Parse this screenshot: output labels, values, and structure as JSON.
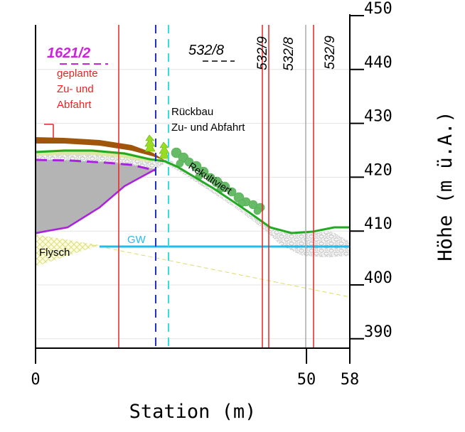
{
  "axes": {
    "x_label": "Station (m)",
    "y_label": "Höhe (m ü.A.)",
    "x_ticks": [
      {
        "value": 0,
        "label": "0"
      },
      {
        "value": 50,
        "label": "50"
      },
      {
        "value": 58,
        "label": "58"
      }
    ],
    "y_ticks": [
      {
        "value": 390,
        "label": "390"
      },
      {
        "value": 400,
        "label": "400"
      },
      {
        "value": 410,
        "label": "410"
      },
      {
        "value": 420,
        "label": "420"
      },
      {
        "value": 430,
        "label": "430"
      },
      {
        "value": 440,
        "label": "440"
      },
      {
        "value": 450,
        "label": "450"
      }
    ],
    "x_range": [
      0,
      58
    ],
    "y_range": [
      388,
      450
    ]
  },
  "parcels": {
    "left": "1621/2",
    "mid": "532/8",
    "v1": "532/9",
    "v2": "532/8",
    "v3": "532/9"
  },
  "labels": {
    "planned_line1": "geplante",
    "planned_line2": "Zu- und",
    "planned_line3": "Abfahrt",
    "rueckbau_line1": "Rückbau",
    "rueckbau_line2": "Zu- und Abfahrt",
    "rekultiviert": "Rekultiviert",
    "gw": "GW",
    "flysch": "Flysch"
  },
  "colors": {
    "terrain": "#22aa22",
    "brown": "#a0560a",
    "purple": "#aa22dd",
    "groundwater": "#22bbee",
    "red": "#ee2222",
    "blue": "#2233cc",
    "cyan": "#33dddd",
    "gray": "#aaaaaa",
    "flysch": "#eeee99"
  }
}
